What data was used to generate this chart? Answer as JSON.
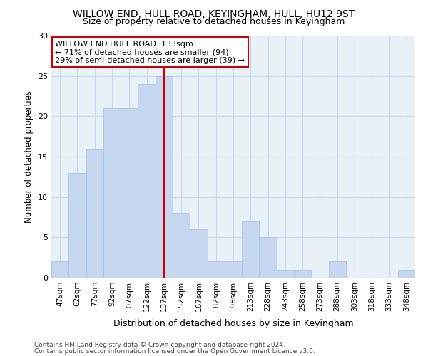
{
  "title": "WILLOW END, HULL ROAD, KEYINGHAM, HULL, HU12 9ST",
  "subtitle": "Size of property relative to detached houses in Keyingham",
  "xlabel": "Distribution of detached houses by size in Keyingham",
  "ylabel": "Number of detached properties",
  "categories": [
    "47sqm",
    "62sqm",
    "77sqm",
    "92sqm",
    "107sqm",
    "122sqm",
    "137sqm",
    "152sqm",
    "167sqm",
    "182sqm",
    "198sqm",
    "213sqm",
    "228sqm",
    "243sqm",
    "258sqm",
    "273sqm",
    "288sqm",
    "303sqm",
    "318sqm",
    "333sqm",
    "348sqm"
  ],
  "values": [
    2,
    13,
    16,
    21,
    21,
    24,
    25,
    8,
    6,
    2,
    2,
    7,
    5,
    1,
    1,
    0,
    2,
    0,
    0,
    0,
    1
  ],
  "bar_color": "#c5d8f0",
  "bar_edgecolor": "#a0bfe0",
  "background_color": "#e8f0f8",
  "grid_color": "#c8d8e8",
  "fig_background": "#ffffff",
  "vline_x_index": 6,
  "vline_color": "#cc0000",
  "annotation_text": "WILLOW END HULL ROAD: 133sqm\n← 71% of detached houses are smaller (94)\n29% of semi-detached houses are larger (39) →",
  "annotation_box_facecolor": "#ffffff",
  "annotation_box_edgecolor": "#cc0000",
  "ylim": [
    0,
    30
  ],
  "yticks": [
    0,
    5,
    10,
    15,
    20,
    25,
    30
  ],
  "footer1": "Contains HM Land Registry data © Crown copyright and database right 2024.",
  "footer2": "Contains public sector information licensed under the Open Government Licence v3.0."
}
